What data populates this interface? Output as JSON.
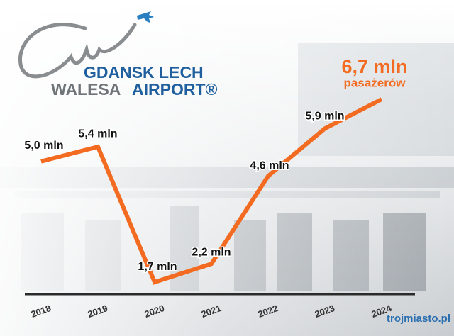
{
  "logo": {
    "line1": "GDANSK LECH",
    "line2a": "WALESA",
    "line2b": "AIRPORT®"
  },
  "watermark": "trojmiasto.pl",
  "chart_data": {
    "type": "line",
    "categories": [
      "2018",
      "2019",
      "2020",
      "2021",
      "2022",
      "2023",
      "2024"
    ],
    "series": [
      {
        "color": "#f26b21",
        "values": [
          5.0,
          5.4,
          1.7,
          2.2,
          4.6,
          5.9,
          6.7
        ],
        "value_labels": [
          "5,0 mln",
          "5,4 mln",
          "1,7 mln",
          "2,2 mln",
          "4,6 mln",
          "5,9 mln",
          "6,7 mln"
        ]
      }
    ],
    "annotation": "pasażerów"
  }
}
